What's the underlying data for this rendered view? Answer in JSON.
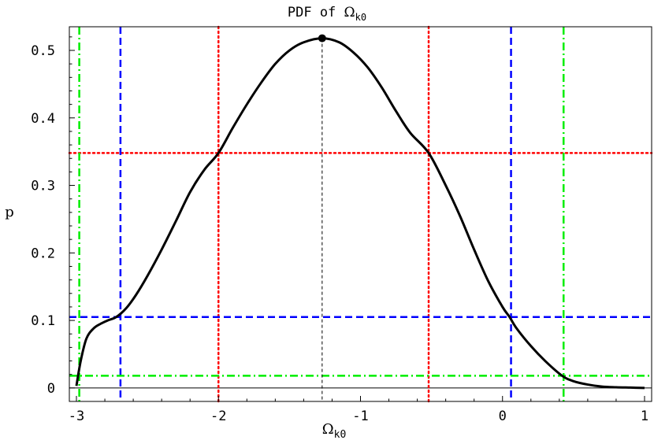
{
  "chart_data": {
    "type": "line",
    "title": "PDF of",
    "title_symbol": "Ω",
    "title_subscript": "k0",
    "xlabel": "Ω",
    "xlabel_subscript": "k0",
    "ylabel": "p",
    "xlim": [
      -3.05,
      1.05
    ],
    "ylim": [
      -0.02,
      0.535
    ],
    "x_ticks": [
      -3,
      -2,
      -1,
      0,
      1
    ],
    "x_tick_labels": [
      "-3",
      "-2",
      "-1",
      "0",
      "1"
    ],
    "y_ticks": [
      0,
      0.1,
      0.2,
      0.3,
      0.4,
      0.5
    ],
    "y_tick_labels": [
      "0",
      "0.1",
      "0.2",
      "0.3",
      "0.4",
      "0.5"
    ],
    "grid": false,
    "series": [
      {
        "color": "#000000",
        "x": [
          -3.0,
          -2.97,
          -2.93,
          -2.88,
          -2.83,
          -2.78,
          -2.72,
          -2.65,
          -2.58,
          -2.5,
          -2.4,
          -2.3,
          -2.2,
          -2.1,
          -2.0,
          -1.9,
          -1.8,
          -1.7,
          -1.6,
          -1.5,
          -1.4,
          -1.27,
          -1.15,
          -1.05,
          -0.95,
          -0.85,
          -0.75,
          -0.65,
          -0.52,
          -0.4,
          -0.3,
          -0.2,
          -0.1,
          0.0,
          0.05,
          0.1,
          0.2,
          0.3,
          0.42,
          0.5,
          0.6,
          0.7,
          0.8,
          0.9,
          1.0
        ],
        "values": [
          0.003,
          0.04,
          0.073,
          0.088,
          0.095,
          0.1,
          0.105,
          0.118,
          0.138,
          0.166,
          0.205,
          0.247,
          0.29,
          0.323,
          0.348,
          0.385,
          0.42,
          0.452,
          0.48,
          0.5,
          0.512,
          0.518,
          0.512,
          0.497,
          0.475,
          0.445,
          0.41,
          0.378,
          0.348,
          0.3,
          0.255,
          0.205,
          0.158,
          0.12,
          0.105,
          0.088,
          0.062,
          0.04,
          0.018,
          0.01,
          0.005,
          0.002,
          0.001,
          0.0005,
          0.0
        ]
      }
    ],
    "peak": {
      "x": -1.27,
      "y": 0.518
    },
    "reference_lines": [
      {
        "style": "dotted",
        "color": "#ff0000",
        "vertical": [
          -2.0,
          -0.52
        ],
        "horizontal": 0.348
      },
      {
        "style": "dashed",
        "color": "#0000ff",
        "vertical": [
          -2.69,
          0.06
        ],
        "horizontal": 0.105
      },
      {
        "style": "dashdot",
        "color": "#00ee00",
        "vertical": [
          -2.98,
          0.43
        ],
        "horizontal": 0.018
      }
    ]
  }
}
